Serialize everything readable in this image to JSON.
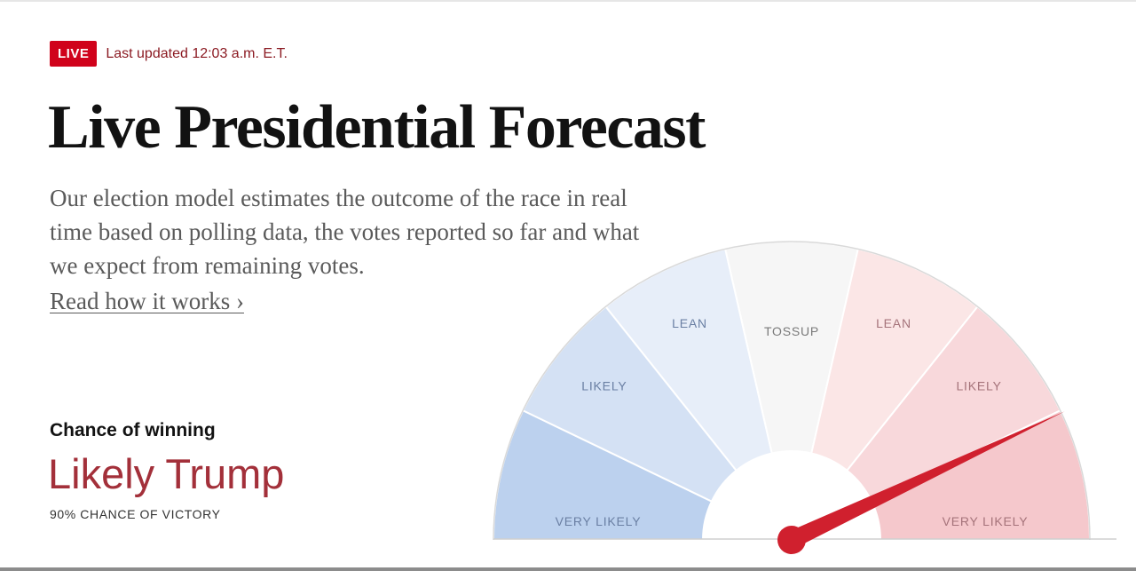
{
  "status": {
    "live_label": "LIVE",
    "updated_text": "Last updated 12:03 a.m. E.T."
  },
  "header": {
    "title": "Live Presidential Forecast"
  },
  "intro": {
    "description": "Our election model estimates the outcome of the race in real time based on polling data, the votes reported so far and what we expect from remaining votes.",
    "read_link": "Read how it works ›"
  },
  "forecast": {
    "chance_label": "Chance of winning",
    "outcome": "Likely Trump",
    "victory_text": "90% CHANCE OF VICTORY",
    "chance_value": 90
  },
  "gauge": {
    "segments": [
      {
        "label": "VERY LIKELY",
        "side": "left",
        "color": "#bcd1ee"
      },
      {
        "label": "LIKELY",
        "side": "left",
        "color": "#d4e1f4"
      },
      {
        "label": "LEAN",
        "side": "left",
        "color": "#e7eef9"
      },
      {
        "label": "TOSSUP",
        "side": "center",
        "color": "#f6f6f6"
      },
      {
        "label": "LEAN",
        "side": "right",
        "color": "#fbe6e6"
      },
      {
        "label": "LIKELY",
        "side": "right",
        "color": "#f8d8db"
      },
      {
        "label": "VERY LIKELY",
        "side": "right",
        "color": "#f5c8cc"
      }
    ],
    "needle_color": "#d0202e",
    "needle_value": 0.86
  }
}
